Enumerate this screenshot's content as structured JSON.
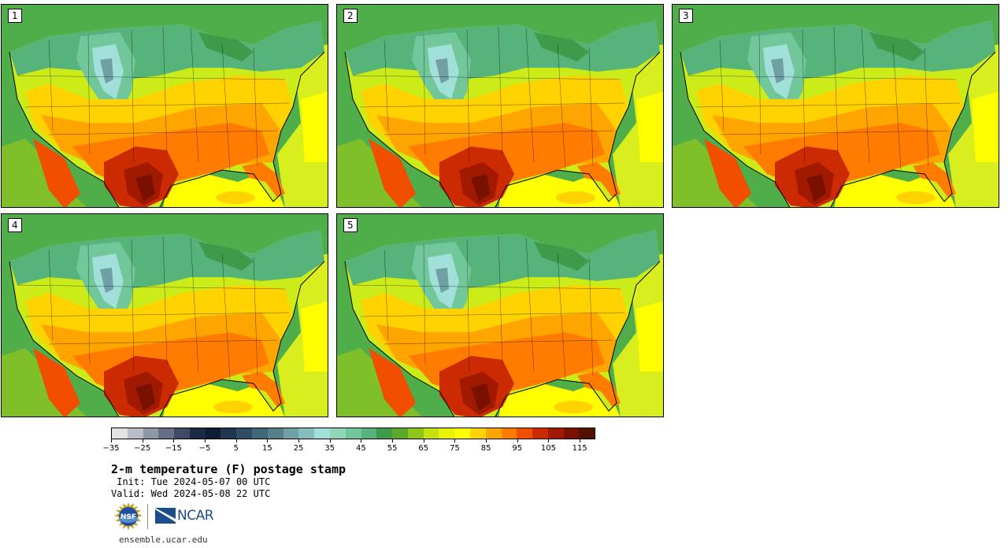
{
  "panels": [
    {
      "label": "1"
    },
    {
      "label": "2"
    },
    {
      "label": "3"
    },
    {
      "label": "4"
    },
    {
      "label": "5"
    }
  ],
  "colorbar": {
    "levels": [
      -35,
      -30,
      -25,
      -20,
      -15,
      -10,
      -5,
      0,
      5,
      10,
      15,
      20,
      25,
      30,
      35,
      40,
      45,
      50,
      55,
      60,
      65,
      70,
      75,
      80,
      85,
      90,
      95,
      100,
      105,
      110,
      115,
      120
    ],
    "tick_labels": [
      "−35",
      "−25",
      "−15",
      "−5",
      "5",
      "15",
      "25",
      "35",
      "45",
      "55",
      "65",
      "75",
      "85",
      "95",
      "105",
      "115"
    ],
    "colors": [
      "#e3e3e3",
      "#b9bec6",
      "#8e97a6",
      "#666f86",
      "#3e4a66",
      "#1d2a45",
      "#0f1e33",
      "#1f3550",
      "#2f4e66",
      "#3f6779",
      "#55808a",
      "#6fa0a6",
      "#86bdbe",
      "#a0e0d8",
      "#8fd7b6",
      "#72c79a",
      "#56b37a",
      "#3f9b4a",
      "#5ca82a",
      "#8ec61a",
      "#c4e20c",
      "#e9f200",
      "#ffff00",
      "#ffd200",
      "#ffa500",
      "#ff7c00",
      "#f24e00",
      "#cc2a00",
      "#a11a00",
      "#7a1000",
      "#551000"
    ]
  },
  "title": "2-m temperature (F) postage stamp",
  "init": " Init: Tue 2024-05-07 00 UTC",
  "valid": "Valid: Wed 2024-05-08 22 UTC",
  "logos": {
    "nsf": "NSF",
    "ncar": "NCAR"
  },
  "url": "ensemble.ucar.edu"
}
